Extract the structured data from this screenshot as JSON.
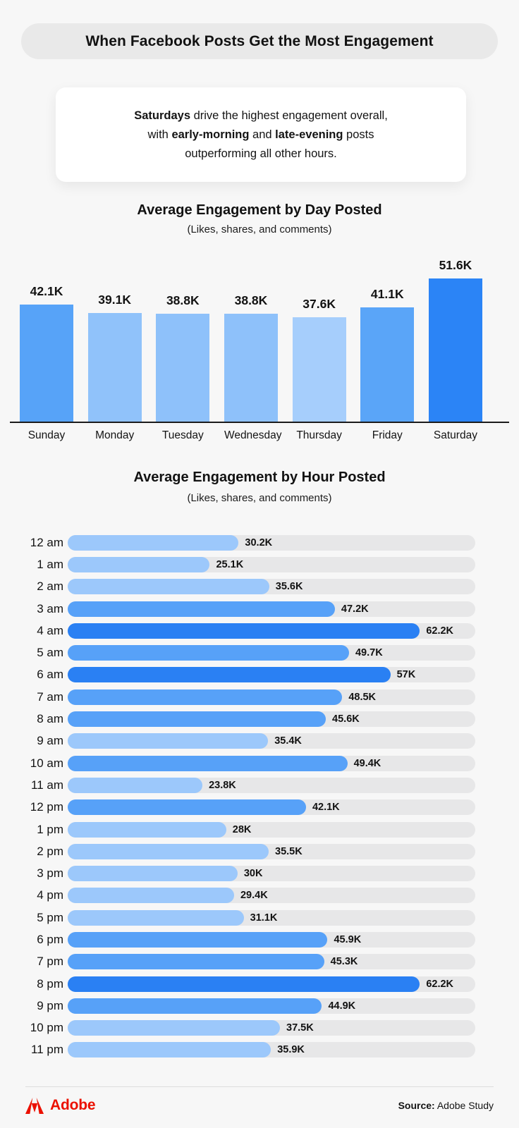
{
  "page": {
    "background": "#f7f7f7",
    "accent_dark": "#2a80f3",
    "accent_medium": "#57a1f8",
    "accent_light": "#9cc8fb",
    "track_gray": "#e7e7e8",
    "adobe_red": "#eb1000"
  },
  "header": {
    "title": "When Facebook Posts Get the Most Engagement"
  },
  "callout": {
    "lines": [
      [
        {
          "text": "Saturdays",
          "bold": true
        },
        {
          "text": " drive the highest engagement overall,",
          "bold": false
        }
      ],
      [
        {
          "text": "with ",
          "bold": false
        },
        {
          "text": "early-morning",
          "bold": true
        },
        {
          "text": " and ",
          "bold": false
        },
        {
          "text": "late-evening",
          "bold": true
        },
        {
          "text": " posts",
          "bold": false
        }
      ],
      [
        {
          "text": "outperforming all other hours.",
          "bold": false
        }
      ]
    ]
  },
  "chart_data": [
    {
      "type": "bar",
      "orientation": "vertical",
      "title": "Average Engagement by Day Posted",
      "subtitle": "(Likes, shares, and comments)",
      "categories": [
        "Sunday",
        "Monday",
        "Tuesday",
        "Wednesday",
        "Thursday",
        "Friday",
        "Saturday"
      ],
      "values": [
        42.1,
        39.1,
        38.8,
        38.8,
        37.6,
        41.1,
        51.6
      ],
      "labels": [
        "42.1K",
        "39.1K",
        "38.8K",
        "38.8K",
        "37.6K",
        "41.1K",
        "51.6K"
      ],
      "bar_colors": [
        "#57a3f8",
        "#90c2fa",
        "#8ec1fa",
        "#8ec1fa",
        "#a6cefc",
        "#5aa5f8",
        "#2b84f6"
      ],
      "unit": "K",
      "ylim": [
        0,
        52
      ],
      "grid": false,
      "legend": false
    },
    {
      "type": "bar",
      "orientation": "horizontal",
      "title": "Average Engagement by Hour Posted",
      "subtitle": "(Likes, shares, and comments)",
      "categories": [
        "12 am",
        "1 am",
        "2 am",
        "3 am",
        "4 am",
        "5 am",
        "6 am",
        "7 am",
        "8 am",
        "9 am",
        "10 am",
        "11 am",
        "12 pm",
        "1 pm",
        "2 pm",
        "3 pm",
        "4 pm",
        "5 pm",
        "6 pm",
        "7 pm",
        "8 pm",
        "9 pm",
        "10 pm",
        "11 pm"
      ],
      "values": [
        30.2,
        25.1,
        35.6,
        47.2,
        62.2,
        49.7,
        57,
        48.5,
        45.6,
        35.4,
        49.4,
        23.8,
        42.1,
        28,
        35.5,
        30,
        29.4,
        31.1,
        45.9,
        45.3,
        62.2,
        44.9,
        37.5,
        35.9
      ],
      "labels": [
        "30.2K",
        "25.1K",
        "35.6K",
        "47.2K",
        "62.2K",
        "49.7K",
        "57K",
        "48.5K",
        "45.6K",
        "35.4K",
        "49.4K",
        "23.8K",
        "42.1K",
        "28K",
        "35.5K",
        "30K",
        "29.4K",
        "31.1K",
        "45.9K",
        "45.3K",
        "62.2K",
        "44.9K",
        "37.5K",
        "35.9K"
      ],
      "bar_colors": [
        "#9cc8fb",
        "#9cc8fb",
        "#9cc8fb",
        "#57a1f8",
        "#2a80f3",
        "#57a1f8",
        "#2a80f3",
        "#57a1f8",
        "#57a1f8",
        "#9cc8fb",
        "#57a1f8",
        "#9cc8fb",
        "#57a1f8",
        "#9cc8fb",
        "#9cc8fb",
        "#9cc8fb",
        "#9cc8fb",
        "#9cc8fb",
        "#57a1f8",
        "#57a1f8",
        "#2a80f3",
        "#57a1f8",
        "#9cc8fb",
        "#9cc8fb"
      ],
      "unit": "K",
      "xlim": [
        0,
        72
      ],
      "grid": false,
      "legend": false
    }
  ],
  "footer": {
    "brand": "Adobe",
    "source_label": "Source:",
    "source_value": " Adobe Study"
  }
}
